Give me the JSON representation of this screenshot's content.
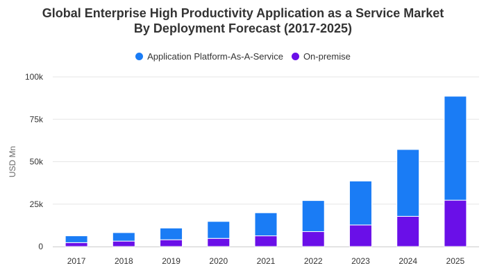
{
  "chart_data": {
    "type": "bar",
    "stacked": true,
    "title_lines": [
      "Global Enterprise High Productivity Application as a Service Market",
      "By Deployment Forecast (2017-2025)"
    ],
    "xlabel": "",
    "ylabel": "USD Mn",
    "ylim": [
      0,
      100000
    ],
    "yticks": [
      {
        "value": 0,
        "label": "0"
      },
      {
        "value": 25000,
        "label": "25k"
      },
      {
        "value": 50000,
        "label": "50k"
      },
      {
        "value": 75000,
        "label": "75k"
      },
      {
        "value": 100000,
        "label": "100k"
      }
    ],
    "grid": true,
    "legend_position": "top-center",
    "categories": [
      "2017",
      "2018",
      "2019",
      "2020",
      "2021",
      "2022",
      "2023",
      "2024",
      "2025"
    ],
    "series": [
      {
        "name": "On-premise",
        "color": "#6a0fe8",
        "values": [
          2300,
          3200,
          4000,
          4800,
          6300,
          8800,
          12700,
          17800,
          27300
        ]
      },
      {
        "name": "Application Platform-As-A-Service",
        "color": "#1a7cf5",
        "values": [
          4000,
          5000,
          6900,
          10000,
          13600,
          18300,
          25900,
          39400,
          61300
        ]
      }
    ],
    "legend_order": [
      "Application Platform-As-A-Service",
      "On-premise"
    ]
  }
}
